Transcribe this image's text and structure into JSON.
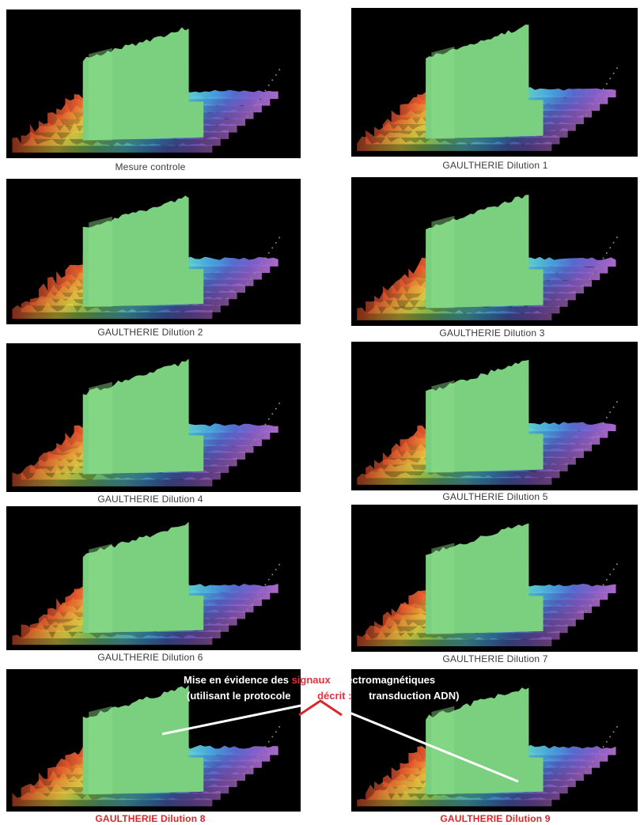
{
  "colors": {
    "peak": "#7ad07e",
    "gradient": [
      "#e8492c",
      "#f4a33a",
      "#f3e04a",
      "#9fdc5a",
      "#6fd29a",
      "#5fd0d8",
      "#4aa6e6",
      "#5a6fd6",
      "#8a62d2",
      "#b56fd0"
    ],
    "highlight": "#d9262a",
    "pointer_line": "#ffffff",
    "pointer_vertex": "#d9262a"
  },
  "chart_data": [
    {
      "type": "3d-spectrogram",
      "caption": "Mesure controle",
      "highlighted": false
    },
    {
      "type": "3d-spectrogram",
      "caption": "GAULTHERIE Dilution 1",
      "highlighted": false
    },
    {
      "type": "3d-spectrogram",
      "caption": "GAULTHERIE Dilution 2",
      "highlighted": false
    },
    {
      "type": "3d-spectrogram",
      "caption": "GAULTHERIE Dilution 3",
      "highlighted": false
    },
    {
      "type": "3d-spectrogram",
      "caption": "GAULTHERIE Dilution 4",
      "highlighted": false
    },
    {
      "type": "3d-spectrogram",
      "caption": "GAULTHERIE Dilution 5",
      "highlighted": false
    },
    {
      "type": "3d-spectrogram",
      "caption": "GAULTHERIE Dilution 6",
      "highlighted": false
    },
    {
      "type": "3d-spectrogram",
      "caption": "GAULTHERIE Dilution 7",
      "highlighted": false
    },
    {
      "type": "3d-spectrogram",
      "caption": "GAULTHERIE Dilution 8",
      "highlighted": true
    },
    {
      "type": "3d-spectrogram",
      "caption": "GAULTHERIE Dilution 9",
      "highlighted": true
    }
  ],
  "annotation": {
    "line1_a": "Mise en évidence des",
    "line1_highlight": "signaux",
    "line1_b": "électromagnétiques",
    "line2_a": "(utilisant le protocole",
    "line2_highlight": "décrit :",
    "line2_b": "transduction ADN)"
  }
}
